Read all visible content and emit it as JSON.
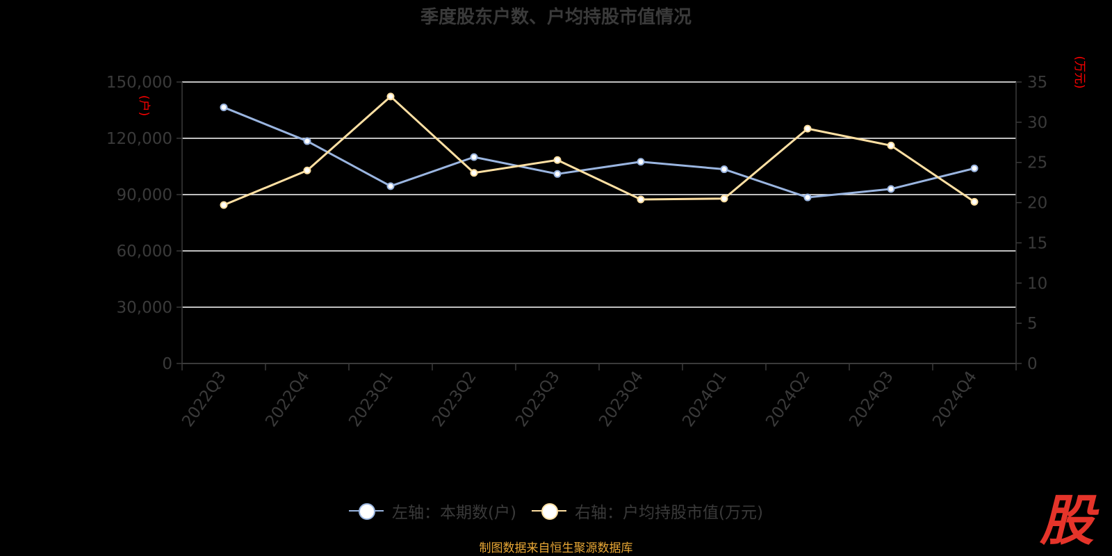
{
  "title": "季度股东户数、户均持股市值情况",
  "source": "制图数据来自恒生聚源数据库",
  "logo_text": "股",
  "colors": {
    "background": "#000000",
    "series_left": "#9ab5e0",
    "series_right": "#ffe0a3",
    "axis_text": "#3a3a3a",
    "unit_text": "#ff0000",
    "grid": "#ffffff"
  },
  "chart_data": {
    "type": "line",
    "categories": [
      "2022Q3",
      "2022Q4",
      "2023Q1",
      "2023Q2",
      "2023Q3",
      "2023Q4",
      "2024Q1",
      "2024Q2",
      "2024Q3",
      "2024Q4"
    ],
    "series": [
      {
        "name": "左轴：本期数(户)",
        "axis": "left",
        "values": [
          136500,
          118500,
          94500,
          110000,
          101000,
          107500,
          103500,
          88500,
          93000,
          104000
        ]
      },
      {
        "name": "右轴：户均持股市值(万元)",
        "axis": "right",
        "values": [
          19.7,
          24.0,
          33.2,
          23.7,
          25.3,
          20.4,
          20.5,
          29.2,
          27.1,
          20.1
        ]
      }
    ],
    "left_axis": {
      "unit": "(户)",
      "ticks": [
        "0",
        "30,000",
        "60,000",
        "90,000",
        "120,000",
        "150,000"
      ],
      "ylim": [
        0,
        150000
      ]
    },
    "right_axis": {
      "unit": "(万元)",
      "ticks": [
        "0",
        "5",
        "10",
        "15",
        "20",
        "25",
        "30",
        "35"
      ],
      "ylim": [
        0,
        35
      ]
    },
    "grid": true,
    "legend_position": "bottom-center"
  }
}
